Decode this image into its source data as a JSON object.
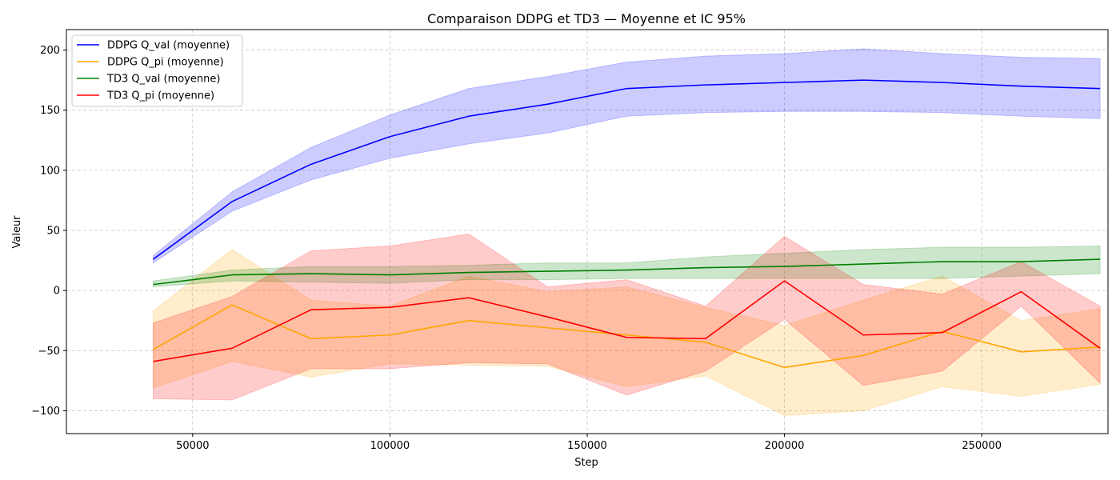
{
  "chart_data": {
    "type": "line",
    "title": "Comparaison DDPG et TD3 — Moyenne et IC 95%",
    "xlabel": "Step",
    "ylabel": "Valeur",
    "xlim": [
      18000,
      282000
    ],
    "ylim": [
      -119,
      217
    ],
    "xticks": [
      50000,
      100000,
      150000,
      200000,
      250000
    ],
    "yticks": [
      -100,
      -50,
      0,
      50,
      100,
      150,
      200
    ],
    "xtick_labels": [
      "50000",
      "100000",
      "150000",
      "200000",
      "250000"
    ],
    "ytick_labels": [
      "−100",
      "−50",
      "0",
      "50",
      "100",
      "150",
      "200"
    ],
    "grid": true,
    "legend_position": "top-left",
    "x": [
      40000,
      60000,
      80000,
      100000,
      120000,
      140000,
      160000,
      180000,
      200000,
      220000,
      240000,
      260000,
      280000
    ],
    "series": [
      {
        "name": "DDPG Q_val (moyenne)",
        "color": "#0000ff",
        "values": [
          26,
          74,
          105,
          128,
          145,
          155,
          168,
          171,
          173,
          175,
          173,
          170,
          168
        ],
        "ci_lower": [
          23,
          66,
          92,
          110,
          122,
          131,
          145,
          148,
          149,
          149,
          148,
          145,
          143
        ],
        "ci_upper": [
          29,
          82,
          119,
          146,
          168,
          178,
          190,
          195,
          197,
          201,
          197,
          194,
          193
        ]
      },
      {
        "name": "DDPG Q_pi (moyenne)",
        "color": "#ffa500",
        "values": [
          -49,
          -12,
          -40,
          -37,
          -25,
          -31,
          -37,
          -43,
          -64,
          -54,
          -34,
          -51,
          -47
        ],
        "ci_lower": [
          -81,
          -59,
          -72,
          -61,
          -62,
          -63,
          -80,
          -71,
          -104,
          -100,
          -80,
          -88,
          -78
        ],
        "ci_upper": [
          -17,
          34,
          -8,
          -13,
          12,
          -1,
          3,
          -14,
          -29,
          -8,
          12,
          -25,
          -15
        ]
      },
      {
        "name": "TD3 Q_val (moyenne)",
        "color": "#008000",
        "values": [
          5,
          13,
          14,
          13,
          15,
          16,
          17,
          19,
          20,
          22,
          24,
          24,
          26
        ],
        "ci_lower": [
          3,
          8,
          7,
          6,
          9,
          9,
          10,
          10,
          10,
          10,
          10,
          12,
          14
        ],
        "ci_upper": [
          8,
          17,
          20,
          20,
          21,
          23,
          23,
          28,
          31,
          34,
          36,
          36,
          37
        ]
      },
      {
        "name": "TD3 Q_pi (moyenne)",
        "color": "#ff0000",
        "values": [
          -59,
          -48,
          -16,
          -14,
          -6,
          -22,
          -39,
          -40,
          8,
          -37,
          -35,
          -1,
          -48
        ],
        "ci_lower": [
          -90,
          -91,
          -65,
          -65,
          -60,
          -61,
          -87,
          -67,
          -24,
          -79,
          -67,
          -13,
          -77
        ],
        "ci_upper": [
          -27,
          -5,
          33,
          37,
          47,
          3,
          9,
          -13,
          45,
          5,
          -3,
          24,
          -13
        ]
      }
    ]
  }
}
